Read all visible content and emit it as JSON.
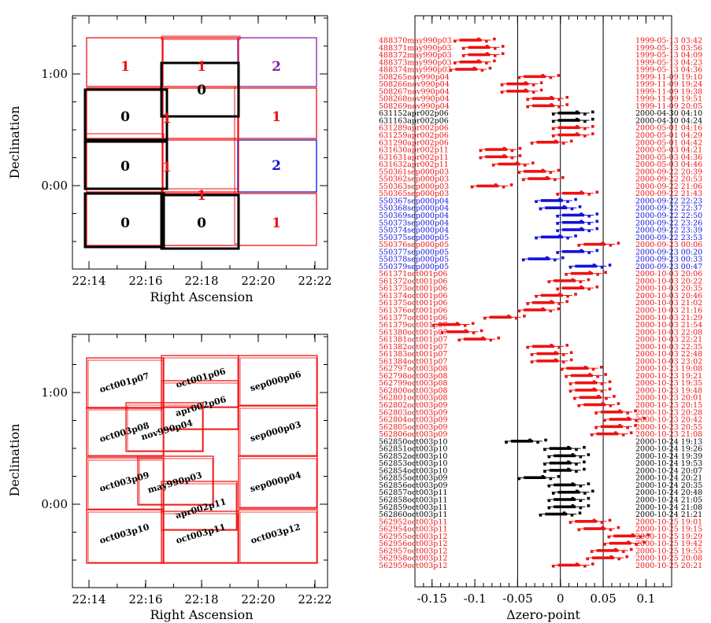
{
  "colors": {
    "red": "#ee1111",
    "blue": "#1111dd",
    "black": "#000000",
    "purple": "#8822aa"
  },
  "chart_data": [
    {
      "id": "coverage_map",
      "type": "map",
      "xlabel": "Right Ascension",
      "ylabel": "Declination",
      "xticks": [
        "22:14",
        "22:16",
        "22:18",
        "22:20",
        "22:22"
      ],
      "yticks": [
        "1:00",
        "0:00"
      ],
      "tiles": [
        {
          "row": 0,
          "col": 0,
          "count": "1",
          "color": "red"
        },
        {
          "row": 0,
          "col": 1,
          "count": "1",
          "color": "red"
        },
        {
          "row": 0,
          "col": 2,
          "count": "2",
          "color": "purple"
        },
        {
          "row": 1,
          "col": 0,
          "count": "0",
          "color": "black"
        },
        {
          "row": 1,
          "col": 1,
          "count": "0",
          "color": "black"
        },
        {
          "row": 1,
          "col": 2,
          "count": "1",
          "color": "red"
        },
        {
          "row": 2,
          "col": 0,
          "count": "0",
          "color": "black"
        },
        {
          "row": 2,
          "col": 1,
          "count": "1",
          "color": "red"
        },
        {
          "row": 2,
          "col": 2,
          "count": "2",
          "color": "blue"
        },
        {
          "row": 3,
          "col": 0,
          "count": "0",
          "color": "black"
        },
        {
          "row": 3,
          "col": 1,
          "count": "0",
          "color": "black"
        },
        {
          "row": 3,
          "col": 2,
          "count": "1",
          "color": "red"
        }
      ],
      "extra_labels": [
        "1",
        "1",
        "1"
      ]
    },
    {
      "id": "field_map",
      "type": "map",
      "xlabel": "Right Ascension",
      "ylabel": "Declination",
      "xticks": [
        "22:14",
        "22:16",
        "22:18",
        "22:20",
        "22:22"
      ],
      "yticks": [
        "1:00",
        "0:00"
      ],
      "fields": [
        "oct001p07",
        "oct001p06",
        "sep000p06",
        "apr002p06",
        "oct003p08",
        "nov990p04",
        "sep000p03",
        "oct003p09",
        "may990p03",
        "sep000p04",
        "apr002p11",
        "oct003p10",
        "oct003p11",
        "oct003p12"
      ]
    },
    {
      "id": "zeropoint",
      "type": "scatter",
      "xlabel": "Δzero-point",
      "xlim": [
        -0.17,
        0.13
      ],
      "xticks": [
        "-0.15",
        "-0.1",
        "-0.05",
        "0",
        "0.05",
        "0.1"
      ],
      "vlines": [
        -0.05,
        0,
        0.05
      ],
      "rows": [
        {
          "id": "488370may990p03",
          "date": "1999-05-13 03:42",
          "c": "red",
          "v": -0.105
        },
        {
          "id": "488371may990p03",
          "date": "1999-05-13 03:56",
          "c": "red",
          "v": -0.095
        },
        {
          "id": "488372may990p03",
          "date": "1999-05-13 04:09",
          "c": "red",
          "v": -0.095
        },
        {
          "id": "488373may990p03",
          "date": "1999-05-13 04:23",
          "c": "red",
          "v": -0.105
        },
        {
          "id": "488374may990p03",
          "date": "1999-05-13 04:36",
          "c": "red",
          "v": -0.11
        },
        {
          "id": "508265nov990p04",
          "date": "1999-11-09 19:10",
          "c": "red",
          "v": -0.03
        },
        {
          "id": "508266nov990p04",
          "date": "1999-11-09 19:24",
          "c": "red",
          "v": -0.05
        },
        {
          "id": "508267nov990p04",
          "date": "1999-11-09 19:38",
          "c": "red",
          "v": -0.05
        },
        {
          "id": "508268nov990p04",
          "date": "1999-11-09 19:51",
          "c": "red",
          "v": -0.02
        },
        {
          "id": "508269nov990p04",
          "date": "1999-11-09 20:05",
          "c": "red",
          "v": -0.02
        },
        {
          "id": "631152apr002p06",
          "date": "2000-04-30 04:10",
          "c": "black",
          "v": 0.01
        },
        {
          "id": "631163apr002p06",
          "date": "2000-04-30 04:24",
          "c": "black",
          "v": 0.01
        },
        {
          "id": "631289apr002p06",
          "date": "2000-05-01 04:16",
          "c": "red",
          "v": 0.01
        },
        {
          "id": "631259apr002p06",
          "date": "2000-05-01 04:29",
          "c": "red",
          "v": 0.01
        },
        {
          "id": "631290apr002p06",
          "date": "2000-05-01 04:42",
          "c": "red",
          "v": -0.015
        },
        {
          "id": "631630apr002p11",
          "date": "2000-05-03 04:21",
          "c": "red",
          "v": -0.075
        },
        {
          "id": "631631apr002p11",
          "date": "2000-05-03 04:36",
          "c": "red",
          "v": -0.075
        },
        {
          "id": "631632apr002p11",
          "date": "2000-05-03 04:46",
          "c": "red",
          "v": -0.06
        },
        {
          "id": "550361sep000p03",
          "date": "2000-09-22 20:39",
          "c": "red",
          "v": -0.03
        },
        {
          "id": "550362sep000p03",
          "date": "2000-09-22 20:53",
          "c": "red",
          "v": -0.025
        },
        {
          "id": "550363sep000p03",
          "date": "2000-09-22 21:06",
          "c": "red",
          "v": -0.085
        },
        {
          "id": "550365sep000p03",
          "date": "2000-09-22 21:43",
          "c": "red",
          "v": 0.015
        },
        {
          "id": "550367sep000p04",
          "date": "2000-09-22 22:23",
          "c": "blue",
          "v": -0.01
        },
        {
          "id": "550368sep000p04",
          "date": "2000-09-22 22:37",
          "c": "blue",
          "v": -0.005
        },
        {
          "id": "550369sep000p04",
          "date": "2000-09-22 22:50",
          "c": "blue",
          "v": 0.015
        },
        {
          "id": "550373sep000p04",
          "date": "2000-09-22 23:26",
          "c": "blue",
          "v": 0.015
        },
        {
          "id": "550374sep000p04",
          "date": "2000-09-22 23:39",
          "c": "blue",
          "v": 0.015
        },
        {
          "id": "550375sep000p05",
          "date": "2000-09-22 23:53",
          "c": "blue",
          "v": -0.01
        },
        {
          "id": "550376sep000p05",
          "date": "2000-09-23 00:06",
          "c": "red",
          "v": 0.04
        },
        {
          "id": "550377sep000p05",
          "date": "2000-09-23 00:20",
          "c": "blue",
          "v": 0.015
        },
        {
          "id": "550378sep000p05",
          "date": "2000-09-23 00:33",
          "c": "blue",
          "v": -0.025
        },
        {
          "id": "550379sep000p05",
          "date": "2000-09-23 00:47",
          "c": "blue",
          "v": 0.03
        },
        {
          "id": "561371oct001p06",
          "date": "2000-10-03 20:06",
          "c": "red",
          "v": 0.025
        },
        {
          "id": "561372oct001p06",
          "date": "2000-10-03 20:22",
          "c": "red",
          "v": 0.005
        },
        {
          "id": "561373oct001p06",
          "date": "2000-10-03 20:35",
          "c": "red",
          "v": 0.015
        },
        {
          "id": "561374oct001p06",
          "date": "2000-10-03 20:46",
          "c": "red",
          "v": -0.01
        },
        {
          "id": "561375oct001p06",
          "date": "2000-10-03 21:02",
          "c": "red",
          "v": -0.02
        },
        {
          "id": "561376oct001p06",
          "date": "2000-10-03 21:16",
          "c": "red",
          "v": -0.03
        },
        {
          "id": "561377oct001p06",
          "date": "2000-10-03 21:29",
          "c": "red",
          "v": -0.07
        },
        {
          "id": "561379oct001p07",
          "date": "2000-10-03 21:54",
          "c": "red",
          "v": -0.13
        },
        {
          "id": "561380oct001p07",
          "date": "2000-10-03 22:08",
          "c": "red",
          "v": -0.12
        },
        {
          "id": "561381oct001p07",
          "date": "2000-10-03 22:21",
          "c": "red",
          "v": -0.1
        },
        {
          "id": "561382oct001p07",
          "date": "2000-10-03 22:35",
          "c": "red",
          "v": -0.02
        },
        {
          "id": "561383oct001p07",
          "date": "2000-10-03 22:48",
          "c": "red",
          "v": -0.015
        },
        {
          "id": "561384oct001p07",
          "date": "2000-10-03 23:02",
          "c": "red",
          "v": -0.015
        },
        {
          "id": "562797oct003p08",
          "date": "2000-10-23 19:08",
          "c": "red",
          "v": 0.02
        },
        {
          "id": "562798oct003p08",
          "date": "2000-10-23 19:21",
          "c": "red",
          "v": 0.025
        },
        {
          "id": "562799oct003p08",
          "date": "2000-10-23 19:35",
          "c": "red",
          "v": 0.03
        },
        {
          "id": "562800oct003p08",
          "date": "2000-10-23 19:48",
          "c": "red",
          "v": 0.03
        },
        {
          "id": "562801oct003p08",
          "date": "2000-10-23 20:01",
          "c": "red",
          "v": 0.035
        },
        {
          "id": "562802oct003p09",
          "date": "2000-10-23 20:15",
          "c": "red",
          "v": 0.04
        },
        {
          "id": "562803oct003p09",
          "date": "2000-10-23 20:28",
          "c": "red",
          "v": 0.06
        },
        {
          "id": "562804oct003p09",
          "date": "2000-10-23 20:42",
          "c": "red",
          "v": 0.07
        },
        {
          "id": "562805oct003p09",
          "date": "2000-10-23 20:55",
          "c": "red",
          "v": 0.06
        },
        {
          "id": "562806oct003p09",
          "date": "2000-10-23 21:08",
          "c": "red",
          "v": 0.055
        },
        {
          "id": "562850oct003p10",
          "date": "2000-10-24 19:13",
          "c": "black",
          "v": -0.045
        },
        {
          "id": "562851oct003p10",
          "date": "2000-10-24 19:26",
          "c": "black",
          "v": 0.0
        },
        {
          "id": "562852oct003p10",
          "date": "2000-10-24 19:39",
          "c": "black",
          "v": 0.005
        },
        {
          "id": "562853oct003p10",
          "date": "2000-10-24 19:53",
          "c": "black",
          "v": 0.0
        },
        {
          "id": "562854oct003p10",
          "date": "2000-10-24 20:07",
          "c": "black",
          "v": 0.0
        },
        {
          "id": "562855oct003p09",
          "date": "2000-10-24 20:21",
          "c": "black",
          "v": -0.03
        },
        {
          "id": "562856oct003p09",
          "date": "2000-10-24 20:35",
          "c": "black",
          "v": 0.005
        },
        {
          "id": "562857oct003p11",
          "date": "2000-10-24 20:48",
          "c": "black",
          "v": 0.01
        },
        {
          "id": "562858oct003p11",
          "date": "2000-10-24 21:05",
          "c": "black",
          "v": 0.005
        },
        {
          "id": "562859oct003p11",
          "date": "2000-10-24 21:08",
          "c": "black",
          "v": 0.005
        },
        {
          "id": "562860oct003p11",
          "date": "2000-10-24 21:21",
          "c": "black",
          "v": -0.005
        },
        {
          "id": "562952oct003p11",
          "date": "2000-10-25 19:01",
          "c": "red",
          "v": 0.03
        },
        {
          "id": "562954oct003p11",
          "date": "2000-10-25 19:15",
          "c": "red",
          "v": 0.04
        },
        {
          "id": "562955oct003p12",
          "date": "2000-10-25 19:29",
          "c": "red",
          "v": 0.075
        },
        {
          "id": "562956oct003p12",
          "date": "2000-10-25 19:42",
          "c": "red",
          "v": 0.07
        },
        {
          "id": "562957oct003p12",
          "date": "2000-10-25 19:55",
          "c": "red",
          "v": 0.055
        },
        {
          "id": "562958oct003p12",
          "date": "2000-10-25 20:08",
          "c": "red",
          "v": 0.05
        },
        {
          "id": "562959oct003p12",
          "date": "2000-10-25 20:21",
          "c": "red",
          "v": 0.01
        }
      ]
    }
  ]
}
